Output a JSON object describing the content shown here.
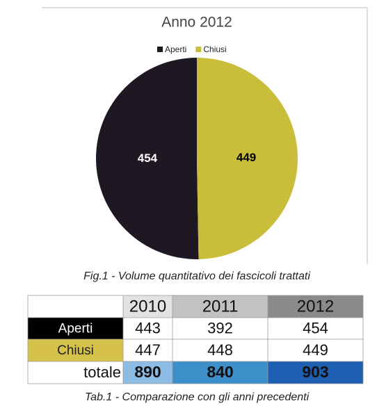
{
  "chart_data": {
    "type": "pie",
    "title": "Anno 2012",
    "categories": [
      "Aperti",
      "Chiusi"
    ],
    "values": [
      454,
      449
    ],
    "colors": [
      "#1f1823",
      "#c8be3a"
    ],
    "legend": "top"
  },
  "figure_caption": "Fig.1 - Volume quantitativo dei fascicoli trattati",
  "table": {
    "columns": [
      "2010",
      "2011",
      "2012"
    ],
    "rows": [
      {
        "label": "Aperti",
        "values": [
          443,
          392,
          454
        ]
      },
      {
        "label": "Chiusi",
        "values": [
          447,
          448,
          449
        ]
      },
      {
        "label": "totale",
        "values": [
          890,
          840,
          903
        ]
      }
    ]
  },
  "table_caption": "Tab.1 - Comparazione con gli anni precedenti"
}
